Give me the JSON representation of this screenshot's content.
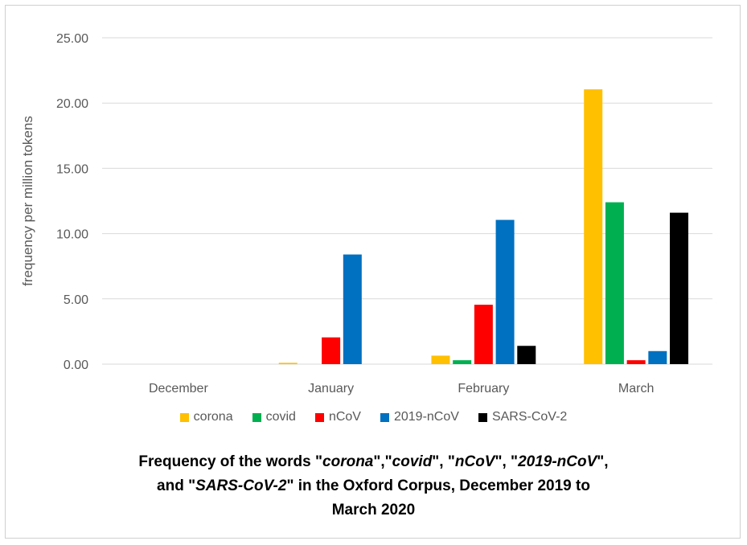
{
  "chart_data": {
    "type": "bar",
    "categories": [
      "December",
      "January",
      "February",
      "March"
    ],
    "series": [
      {
        "name": "corona",
        "color": "#FFC000",
        "values": [
          0,
          0.1,
          0.65,
          21.05
        ]
      },
      {
        "name": "covid",
        "color": "#00B050",
        "values": [
          0,
          0,
          0.3,
          12.4
        ]
      },
      {
        "name": "nCoV",
        "color": "#FF0000",
        "values": [
          0,
          2.05,
          4.55,
          0.3
        ]
      },
      {
        "name": "2019-nCoV",
        "color": "#0070C0",
        "values": [
          0,
          8.4,
          11.05,
          1.0
        ]
      },
      {
        "name": "SARS-CoV-2",
        "color": "#000000",
        "values": [
          0,
          0,
          1.4,
          11.6
        ]
      }
    ],
    "yticks": [
      "0.00",
      "5.00",
      "10.00",
      "15.00",
      "20.00",
      "25.00"
    ],
    "ylim": [
      0,
      25
    ],
    "ylabel": "frequency per million tokens",
    "xlabel": "",
    "grid": true,
    "legend_position": "bottom"
  },
  "caption": {
    "line1_a": "Frequency of the words \"",
    "w1": "corona",
    "sep1": "\",\"",
    "w2": "covid",
    "sep2": "\", \"",
    "w3": "nCoV",
    "sep3": "\", \"",
    "w4": "2019-nCoV",
    "line1_end": "\",",
    "line2_a": "and \"",
    "w5": "SARS-CoV-2",
    "line2_b": "\" in the Oxford Corpus, December 2019 to",
    "line3": "March 2020"
  }
}
